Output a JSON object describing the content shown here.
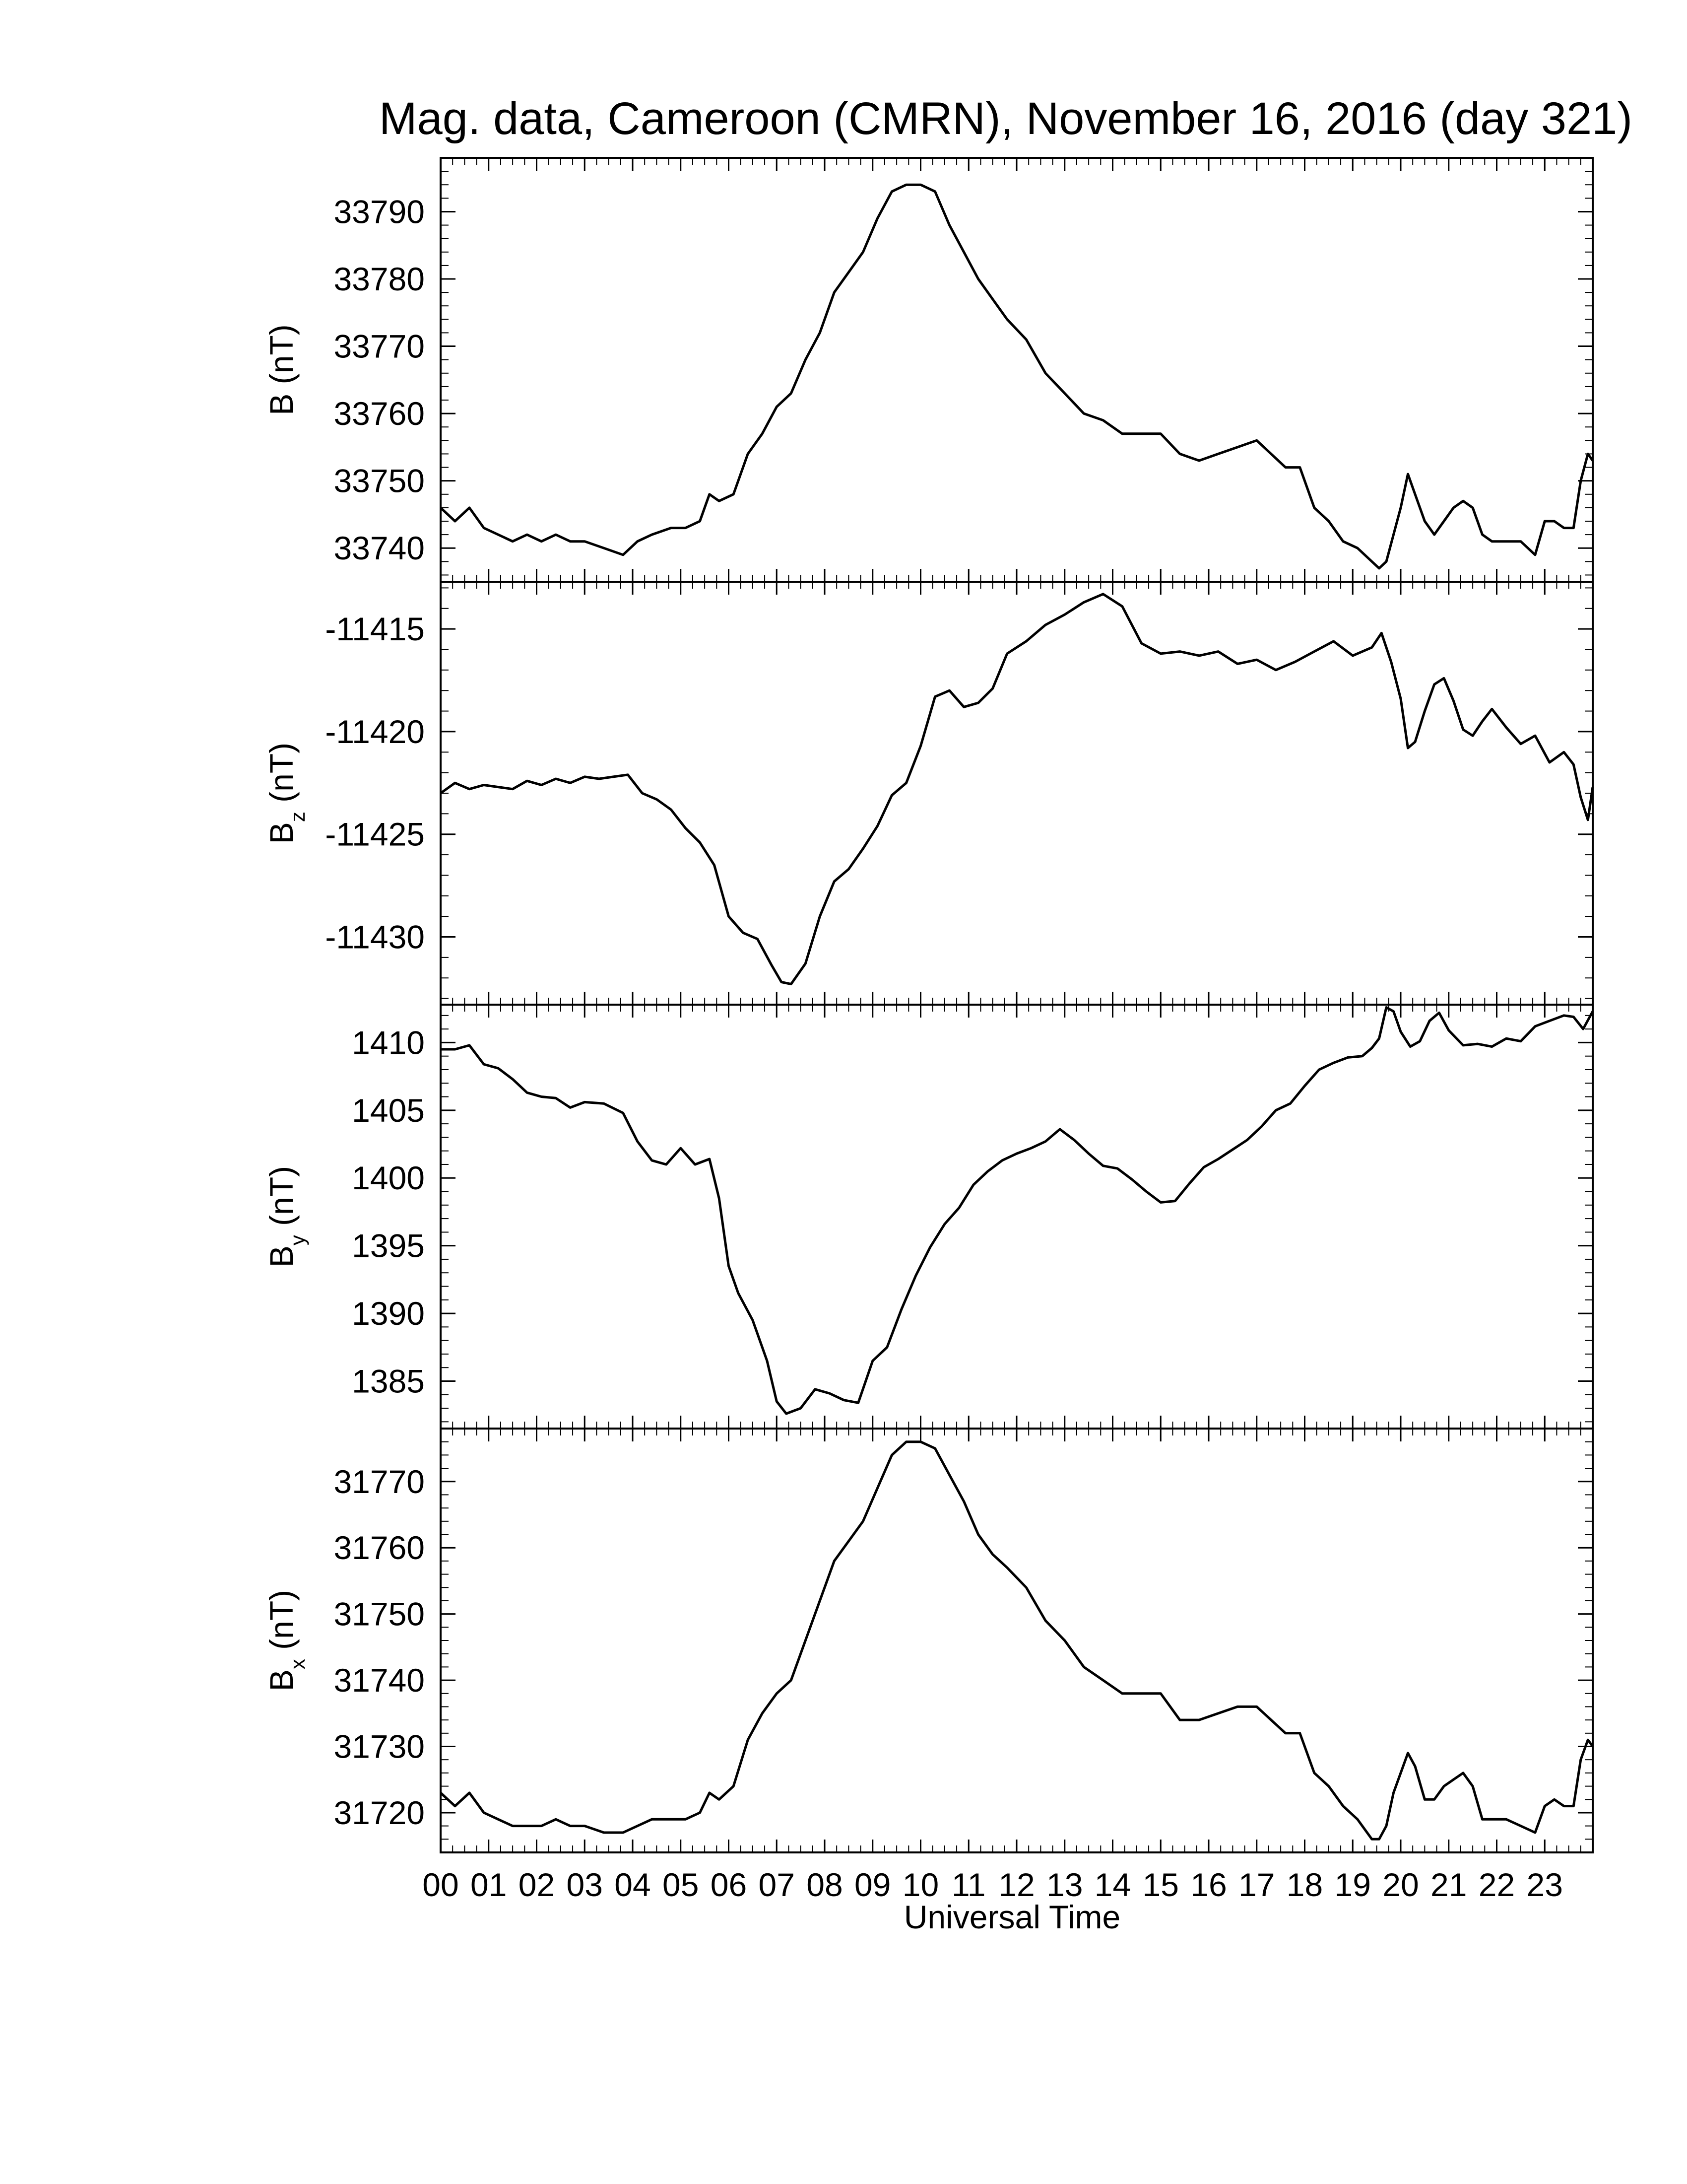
{
  "chart_data": {
    "type": "line",
    "title": "Mag. data, Cameroon (CMRN), November 16, 2016 (day 321)",
    "xlabel": "Universal Time",
    "x_tick_labels": [
      "00",
      "01",
      "02",
      "03",
      "04",
      "05",
      "06",
      "07",
      "08",
      "09",
      "10",
      "11",
      "12",
      "13",
      "14",
      "15",
      "16",
      "17",
      "18",
      "19",
      "20",
      "21",
      "22",
      "23"
    ],
    "xlim": [
      0,
      24
    ],
    "x_unit": "hours UT",
    "grid": false,
    "legend": "none",
    "line_color": "#000000",
    "panels": [
      {
        "name": "B",
        "ylabel": {
          "main": "B",
          "sub": "",
          "unit": "(nT)"
        },
        "ylim": [
          33735,
          33798
        ],
        "yticks": [
          "33740",
          "33750",
          "33760",
          "33770",
          "33780",
          "33790"
        ],
        "series": [
          {
            "x": [
              0,
              0.3,
              0.6,
              0.9,
              1.2,
              1.5,
              1.8,
              2.1,
              2.4,
              2.7,
              3.0,
              3.4,
              3.8,
              4.1,
              4.4,
              4.8,
              5.1,
              5.4,
              5.6,
              5.8,
              6.1,
              6.4,
              6.7,
              7.0,
              7.3,
              7.6,
              7.9,
              8.2,
              8.5,
              8.8,
              9.1,
              9.4,
              9.7,
              10.0,
              10.3,
              10.6,
              10.9,
              11.2,
              11.5,
              11.8,
              12.2,
              12.6,
              13.0,
              13.4,
              13.8,
              14.2,
              14.6,
              15.0,
              15.4,
              15.8,
              16.2,
              16.6,
              17.0,
              17.3,
              17.6,
              17.9,
              18.2,
              18.5,
              18.8,
              19.1,
              19.4,
              19.55,
              19.7,
              19.85,
              20.0,
              20.15,
              20.3,
              20.5,
              20.7,
              20.9,
              21.1,
              21.3,
              21.5,
              21.7,
              21.9,
              22.2,
              22.5,
              22.8,
              23.0,
              23.2,
              23.4,
              23.6,
              23.75,
              23.9,
              24.0
            ],
            "y": [
              33746,
              33744,
              33746,
              33743,
              33742,
              33741,
              33742,
              33741,
              33742,
              33741,
              33741,
              33740,
              33739,
              33741,
              33742,
              33743,
              33743,
              33744,
              33748,
              33747,
              33748,
              33754,
              33757,
              33761,
              33763,
              33768,
              33772,
              33778,
              33781,
              33784,
              33789,
              33793,
              33794,
              33794,
              33793,
              33788,
              33784,
              33780,
              33777,
              33774,
              33771,
              33766,
              33763,
              33760,
              33759,
              33757,
              33757,
              33757,
              33754,
              33753,
              33754,
              33755,
              33756,
              33754,
              33752,
              33752,
              33746,
              33744,
              33741,
              33740,
              33738,
              33737,
              33738,
              33742,
              33746,
              33751,
              33748,
              33744,
              33742,
              33744,
              33746,
              33747,
              33746,
              33742,
              33741,
              33741,
              33741,
              33739,
              33744,
              33744,
              33743,
              33743,
              33750,
              33754,
              33753
            ]
          }
        ]
      },
      {
        "name": "Bz",
        "ylabel": {
          "main": "B",
          "sub": "z",
          "unit": "(nT)"
        },
        "ylim": [
          -11433.3,
          -11412.7
        ],
        "yticks": [
          "-11415",
          "-11420",
          "-11425",
          "-11430"
        ],
        "series": [
          {
            "x": [
              0,
              0.3,
              0.6,
              0.9,
              1.2,
              1.5,
              1.8,
              2.1,
              2.4,
              2.7,
              3.0,
              3.3,
              3.6,
              3.9,
              4.2,
              4.5,
              4.8,
              5.1,
              5.4,
              5.7,
              6.0,
              6.3,
              6.6,
              6.9,
              7.1,
              7.3,
              7.6,
              7.9,
              8.2,
              8.5,
              8.8,
              9.1,
              9.4,
              9.7,
              10.0,
              10.3,
              10.6,
              10.9,
              11.2,
              11.5,
              11.8,
              12.2,
              12.6,
              13.0,
              13.4,
              13.8,
              14.2,
              14.6,
              15.0,
              15.4,
              15.8,
              16.2,
              16.6,
              17.0,
              17.4,
              17.8,
              18.2,
              18.6,
              19.0,
              19.4,
              19.6,
              19.8,
              20.0,
              20.15,
              20.3,
              20.5,
              20.7,
              20.9,
              21.1,
              21.3,
              21.5,
              21.7,
              21.9,
              22.2,
              22.5,
              22.8,
              23.1,
              23.4,
              23.6,
              23.75,
              23.9,
              24.0
            ],
            "y": [
              -11423,
              -11422.5,
              -11422.8,
              -11422.6,
              -11422.7,
              -11422.8,
              -11422.4,
              -11422.6,
              -11422.3,
              -11422.5,
              -11422.2,
              -11422.3,
              -11422.2,
              -11422.1,
              -11423.0,
              -11423.3,
              -11423.8,
              -11424.7,
              -11425.4,
              -11426.5,
              -11429.0,
              -11429.8,
              -11430.1,
              -11431.4,
              -11432.2,
              -11432.3,
              -11431.3,
              -11429.0,
              -11427.3,
              -11426.7,
              -11425.7,
              -11424.6,
              -11423.1,
              -11422.5,
              -11420.7,
              -11418.3,
              -11418.0,
              -11418.8,
              -11418.6,
              -11417.9,
              -11416.2,
              -11415.6,
              -11414.8,
              -11414.3,
              -11413.7,
              -11413.3,
              -11413.9,
              -11415.7,
              -11416.2,
              -11416.1,
              -11416.3,
              -11416.1,
              -11416.7,
              -11416.5,
              -11417.0,
              -11416.6,
              -11416.1,
              -11415.6,
              -11416.3,
              -11415.9,
              -11415.2,
              -11416.6,
              -11418.4,
              -11420.8,
              -11420.5,
              -11419.0,
              -11417.7,
              -11417.4,
              -11418.5,
              -11419.9,
              -11420.2,
              -11419.5,
              -11418.9,
              -11419.8,
              -11420.6,
              -11420.2,
              -11421.5,
              -11421.0,
              -11421.6,
              -11423.2,
              -11424.3,
              -11422.7
            ]
          }
        ]
      },
      {
        "name": "By",
        "ylabel": {
          "main": "B",
          "sub": "y",
          "unit": "(nT)"
        },
        "ylim": [
          1381.5,
          1412.8
        ],
        "yticks": [
          "1385",
          "1390",
          "1395",
          "1400",
          "1405",
          "1410"
        ],
        "series": [
          {
            "x": [
              0,
              0.3,
              0.6,
              0.9,
              1.2,
              1.5,
              1.8,
              2.1,
              2.4,
              2.7,
              3.0,
              3.4,
              3.8,
              4.1,
              4.4,
              4.7,
              5.0,
              5.3,
              5.6,
              5.8,
              6.0,
              6.2,
              6.5,
              6.8,
              7.0,
              7.2,
              7.5,
              7.8,
              8.1,
              8.4,
              8.7,
              9.0,
              9.3,
              9.6,
              9.9,
              10.2,
              10.5,
              10.8,
              11.1,
              11.4,
              11.7,
              12.0,
              12.3,
              12.6,
              12.9,
              13.2,
              13.5,
              13.8,
              14.1,
              14.4,
              14.7,
              15.0,
              15.3,
              15.6,
              15.9,
              16.2,
              16.5,
              16.8,
              17.1,
              17.4,
              17.7,
              18.0,
              18.3,
              18.6,
              18.9,
              19.2,
              19.4,
              19.55,
              19.7,
              19.85,
              20.0,
              20.2,
              20.4,
              20.6,
              20.8,
              21.0,
              21.3,
              21.6,
              21.9,
              22.2,
              22.5,
              22.8,
              23.1,
              23.4,
              23.6,
              23.8,
              24.0
            ],
            "y": [
              1409.5,
              1409.5,
              1409.8,
              1408.4,
              1408.1,
              1407.3,
              1406.3,
              1406.0,
              1405.9,
              1405.2,
              1405.6,
              1405.5,
              1404.8,
              1402.7,
              1401.3,
              1401.0,
              1402.2,
              1401.0,
              1401.4,
              1398.5,
              1393.5,
              1391.5,
              1389.5,
              1386.5,
              1383.5,
              1382.6,
              1383.0,
              1384.4,
              1384.1,
              1383.6,
              1383.4,
              1386.5,
              1387.5,
              1390.3,
              1392.8,
              1394.9,
              1396.6,
              1397.8,
              1399.5,
              1400.5,
              1401.3,
              1401.8,
              1402.2,
              1402.7,
              1403.6,
              1402.8,
              1401.8,
              1400.9,
              1400.7,
              1399.9,
              1399.0,
              1398.2,
              1398.3,
              1399.6,
              1400.8,
              1401.4,
              1402.1,
              1402.8,
              1403.8,
              1405.0,
              1405.5,
              1406.8,
              1408.0,
              1408.5,
              1408.9,
              1409.0,
              1409.6,
              1410.3,
              1412.6,
              1412.3,
              1410.8,
              1409.7,
              1410.1,
              1411.6,
              1412.2,
              1410.9,
              1409.8,
              1409.9,
              1409.7,
              1410.3,
              1410.1,
              1411.2,
              1411.6,
              1412.0,
              1411.9,
              1411.0,
              1412.3
            ]
          }
        ]
      },
      {
        "name": "Bx",
        "ylabel": {
          "main": "B",
          "sub": "x",
          "unit": "(nT)"
        },
        "ylim": [
          31714,
          31778
        ],
        "yticks": [
          "31720",
          "31730",
          "31740",
          "31750",
          "31760",
          "31770"
        ],
        "series": [
          {
            "x": [
              0,
              0.3,
              0.6,
              0.9,
              1.2,
              1.5,
              1.8,
              2.1,
              2.4,
              2.7,
              3.0,
              3.4,
              3.8,
              4.1,
              4.4,
              4.8,
              5.1,
              5.4,
              5.6,
              5.8,
              6.1,
              6.4,
              6.7,
              7.0,
              7.3,
              7.6,
              7.9,
              8.2,
              8.5,
              8.8,
              9.1,
              9.4,
              9.7,
              10.0,
              10.3,
              10.6,
              10.9,
              11.2,
              11.5,
              11.8,
              12.2,
              12.6,
              13.0,
              13.4,
              13.8,
              14.2,
              14.6,
              15.0,
              15.4,
              15.8,
              16.2,
              16.6,
              17.0,
              17.3,
              17.6,
              17.9,
              18.2,
              18.5,
              18.8,
              19.1,
              19.4,
              19.55,
              19.7,
              19.85,
              20.0,
              20.15,
              20.3,
              20.5,
              20.7,
              20.9,
              21.1,
              21.3,
              21.5,
              21.7,
              21.9,
              22.2,
              22.5,
              22.8,
              23.0,
              23.2,
              23.4,
              23.6,
              23.75,
              23.9,
              24.0
            ],
            "y": [
              31723,
              31721,
              31723,
              31720,
              31719,
              31718,
              31718,
              31718,
              31719,
              31718,
              31718,
              31717,
              31717,
              31718,
              31719,
              31719,
              31719,
              31720,
              31723,
              31722,
              31724,
              31731,
              31735,
              31738,
              31740,
              31746,
              31752,
              31758,
              31761,
              31764,
              31769,
              31774,
              31776,
              31776,
              31775,
              31771,
              31767,
              31762,
              31759,
              31757,
              31754,
              31749,
              31746,
              31742,
              31740,
              31738,
              31738,
              31738,
              31734,
              31734,
              31735,
              31736,
              31736,
              31734,
              31732,
              31732,
              31726,
              31724,
              31721,
              31719,
              31716,
              31716,
              31718,
              31723,
              31726,
              31729,
              31727,
              31722,
              31722,
              31724,
              31725,
              31726,
              31724,
              31719,
              31719,
              31719,
              31718,
              31717,
              31721,
              31722,
              31721,
              31721,
              31728,
              31731,
              31730
            ]
          }
        ]
      }
    ]
  }
}
